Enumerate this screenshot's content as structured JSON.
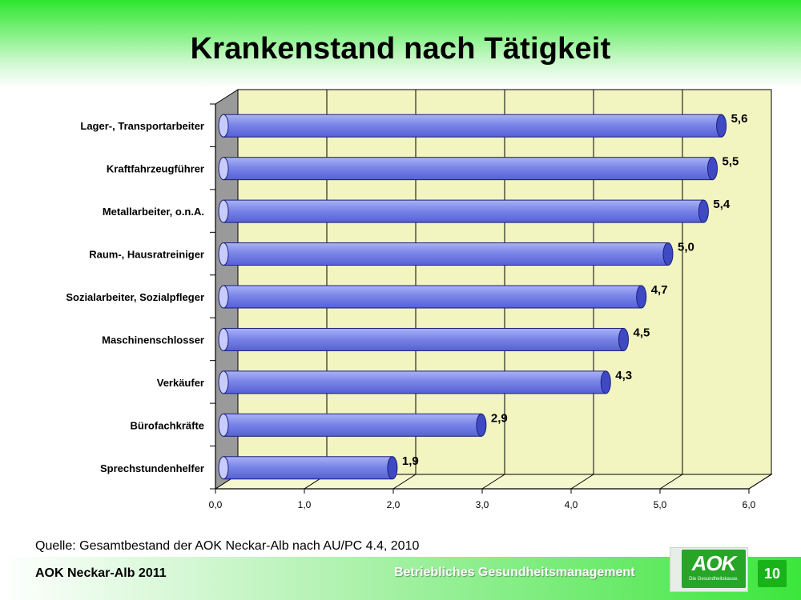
{
  "slide": {
    "title": "Krankenstand nach Tätigkeit",
    "source": "Quelle: Gesamtbestand der AOK Neckar-Alb nach AU/PC 4.4, 2010",
    "footer_org": "AOK Neckar-Alb 2011",
    "footer_subject": "Betriebliches Gesundheitsmanagement",
    "logo_text": "AOK",
    "logo_tagline": "Die Gesundheitskasse.",
    "page_number": "10"
  },
  "chart_data": {
    "type": "bar",
    "orientation": "horizontal",
    "title": "Krankenstand nach Tätigkeit",
    "categories": [
      "Lager-, Transportarbeiter",
      "Kraftfahrzeugführer",
      "Metallarbeiter, o.n.A.",
      "Raum-, Hausratreiniger",
      "Sozialarbeiter, Sozialpfleger",
      "Maschinenschlosser",
      "Verkäufer",
      "Bürofachkräfte",
      "Sprechstundenhelfer"
    ],
    "values": [
      5.6,
      5.5,
      5.4,
      5.0,
      4.7,
      4.5,
      4.3,
      2.9,
      1.9
    ],
    "value_labels": [
      "5,6",
      "5,5",
      "5,4",
      "5,0",
      "4,7",
      "4,5",
      "4,3",
      "2,9",
      "1,9"
    ],
    "xlim": [
      0,
      6
    ],
    "xticks": [
      "0,0",
      "1,0",
      "2,0",
      "3,0",
      "4,0",
      "5,0",
      "6,0"
    ],
    "grid": true,
    "colors": {
      "bar": "#7b86e8",
      "bar_dark": "#4049c4",
      "back_wall": "#f2f5c0",
      "floor": "#f5f8cf",
      "side_wall": "#9a9a9a"
    }
  }
}
